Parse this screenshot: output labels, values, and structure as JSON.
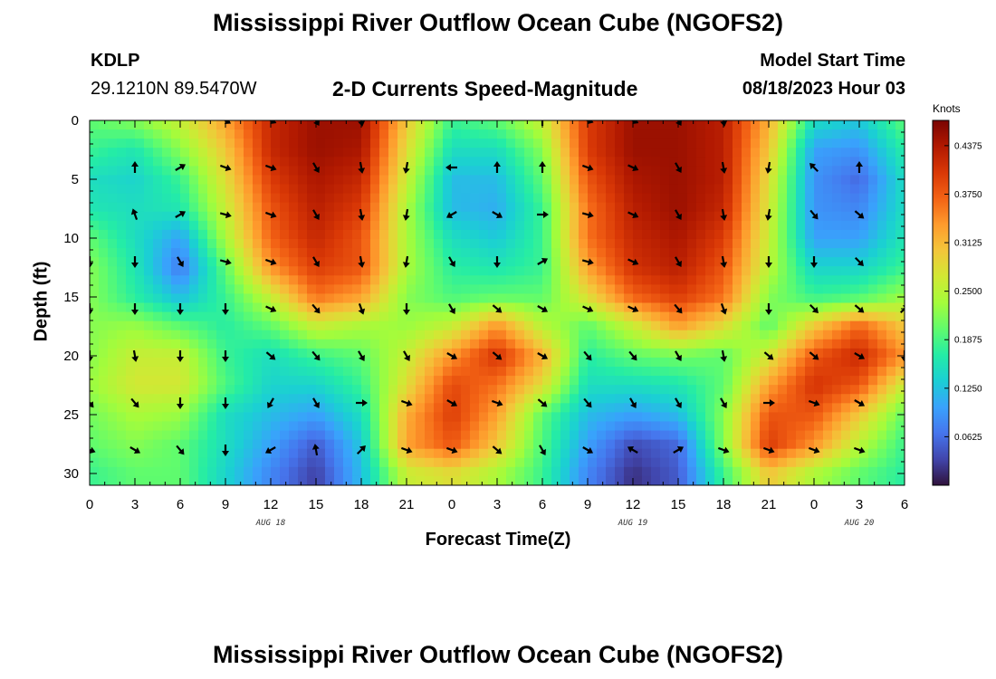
{
  "header": {
    "title": "Mississippi River Outflow Ocean Cube (NGOFS2)",
    "station_id": "KDLP",
    "coordinates": "29.1210N  89.5470W",
    "subtitle": "2-D Currents Speed-Magnitude",
    "model_start_label": "Model Start Time",
    "model_start_value": "08/18/2023 Hour 03"
  },
  "footer": {
    "title": "Mississippi River Outflow Ocean Cube (NGOFS2)"
  },
  "chart_data": {
    "type": "heatmap",
    "x_axis": {
      "label": "Forecast Time(Z)",
      "range_hours": [
        0,
        54
      ],
      "ticks": [
        {
          "hour": 0,
          "label": "0"
        },
        {
          "hour": 3,
          "label": "3"
        },
        {
          "hour": 6,
          "label": "6"
        },
        {
          "hour": 9,
          "label": "9"
        },
        {
          "hour": 12,
          "label": "12"
        },
        {
          "hour": 15,
          "label": "15"
        },
        {
          "hour": 18,
          "label": "18"
        },
        {
          "hour": 21,
          "label": "21"
        },
        {
          "hour": 24,
          "label": "0"
        },
        {
          "hour": 27,
          "label": "3"
        },
        {
          "hour": 30,
          "label": "6"
        },
        {
          "hour": 33,
          "label": "9"
        },
        {
          "hour": 36,
          "label": "12"
        },
        {
          "hour": 39,
          "label": "15"
        },
        {
          "hour": 42,
          "label": "18"
        },
        {
          "hour": 45,
          "label": "21"
        },
        {
          "hour": 48,
          "label": "0"
        },
        {
          "hour": 51,
          "label": "3"
        },
        {
          "hour": 54,
          "label": "6"
        }
      ],
      "date_labels": [
        {
          "hour": 12,
          "label": "AUG 18"
        },
        {
          "hour": 36,
          "label": "AUG 19"
        },
        {
          "hour": 51,
          "label": "AUG 20"
        }
      ]
    },
    "y_axis": {
      "label": "Depth (ft)",
      "range": [
        0,
        31
      ],
      "inverted": true,
      "ticks": [
        0,
        5,
        10,
        15,
        20,
        25,
        30
      ]
    },
    "colorbar": {
      "unit": "Knots",
      "range": [
        0.0,
        0.47
      ],
      "ticks": [
        "0.0625",
        "0.1250",
        "0.1875",
        "0.2500",
        "0.3125",
        "0.3750",
        "0.4375"
      ],
      "tick_values": [
        0.0625,
        0.125,
        0.1875,
        0.25,
        0.3125,
        0.375,
        0.4375
      ],
      "colormap": [
        "#30123b",
        "#4145ab",
        "#4675ed",
        "#39a2fc",
        "#1bcfd4",
        "#24eca6",
        "#61fc6c",
        "#a4fc3b",
        "#d1e834",
        "#f3c63a",
        "#fe9b2d",
        "#f36315",
        "#d93806",
        "#b11901",
        "#7a0402"
      ]
    },
    "speed_field": {
      "description": "current speed magnitude (knots) by forecast hour (columns) and depth (rows)",
      "hours": [
        0,
        3,
        6,
        9,
        12,
        15,
        18,
        21,
        24,
        27,
        30,
        33,
        36,
        39,
        42,
        45,
        48,
        51,
        54
      ],
      "depths": [
        0,
        2.5,
        5,
        7.5,
        10,
        12.5,
        15,
        17.5,
        20,
        22.5,
        25,
        27.5,
        30
      ],
      "values": [
        [
          0.2,
          0.22,
          0.26,
          0.33,
          0.42,
          0.45,
          0.45,
          0.3,
          0.18,
          0.2,
          0.26,
          0.4,
          0.45,
          0.45,
          0.43,
          0.32,
          0.15,
          0.13,
          0.2
        ],
        [
          0.18,
          0.16,
          0.22,
          0.3,
          0.42,
          0.45,
          0.44,
          0.28,
          0.15,
          0.15,
          0.22,
          0.4,
          0.45,
          0.45,
          0.43,
          0.3,
          0.1,
          0.09,
          0.17
        ],
        [
          0.15,
          0.14,
          0.18,
          0.28,
          0.4,
          0.44,
          0.42,
          0.26,
          0.12,
          0.12,
          0.2,
          0.38,
          0.44,
          0.45,
          0.43,
          0.28,
          0.09,
          0.06,
          0.15
        ],
        [
          0.16,
          0.15,
          0.16,
          0.26,
          0.38,
          0.43,
          0.4,
          0.24,
          0.12,
          0.11,
          0.18,
          0.36,
          0.43,
          0.45,
          0.42,
          0.27,
          0.09,
          0.08,
          0.15
        ],
        [
          0.2,
          0.15,
          0.1,
          0.24,
          0.37,
          0.42,
          0.38,
          0.24,
          0.15,
          0.13,
          0.18,
          0.36,
          0.42,
          0.44,
          0.4,
          0.26,
          0.1,
          0.1,
          0.16
        ],
        [
          0.22,
          0.16,
          0.07,
          0.2,
          0.34,
          0.4,
          0.38,
          0.24,
          0.17,
          0.16,
          0.18,
          0.33,
          0.41,
          0.43,
          0.38,
          0.25,
          0.14,
          0.14,
          0.18
        ],
        [
          0.22,
          0.17,
          0.12,
          0.18,
          0.26,
          0.36,
          0.33,
          0.22,
          0.19,
          0.2,
          0.2,
          0.28,
          0.37,
          0.4,
          0.36,
          0.22,
          0.18,
          0.19,
          0.23
        ],
        [
          0.22,
          0.23,
          0.2,
          0.17,
          0.2,
          0.26,
          0.24,
          0.23,
          0.26,
          0.34,
          0.25,
          0.2,
          0.26,
          0.33,
          0.28,
          0.2,
          0.3,
          0.37,
          0.3
        ],
        [
          0.22,
          0.26,
          0.26,
          0.18,
          0.15,
          0.18,
          0.2,
          0.26,
          0.34,
          0.41,
          0.32,
          0.17,
          0.2,
          0.21,
          0.2,
          0.27,
          0.38,
          0.42,
          0.34
        ],
        [
          0.23,
          0.27,
          0.27,
          0.19,
          0.14,
          0.14,
          0.18,
          0.28,
          0.39,
          0.36,
          0.28,
          0.15,
          0.15,
          0.16,
          0.2,
          0.33,
          0.41,
          0.38,
          0.26
        ],
        [
          0.21,
          0.24,
          0.23,
          0.15,
          0.12,
          0.1,
          0.15,
          0.32,
          0.4,
          0.33,
          0.2,
          0.12,
          0.1,
          0.12,
          0.22,
          0.38,
          0.38,
          0.3,
          0.2
        ],
        [
          0.2,
          0.22,
          0.2,
          0.15,
          0.1,
          0.05,
          0.13,
          0.33,
          0.38,
          0.3,
          0.19,
          0.1,
          0.04,
          0.06,
          0.22,
          0.4,
          0.34,
          0.25,
          0.18
        ],
        [
          0.18,
          0.2,
          0.2,
          0.14,
          0.08,
          0.03,
          0.12,
          0.26,
          0.28,
          0.24,
          0.18,
          0.08,
          0.02,
          0.05,
          0.18,
          0.3,
          0.24,
          0.2,
          0.17
        ]
      ]
    },
    "direction_arrows": {
      "description": "current direction in degrees (screen angle: 0 = pointing right, 90 = pointing down)",
      "hours": [
        0,
        3,
        6,
        9,
        12,
        15,
        18,
        21,
        24,
        27,
        30,
        33,
        36,
        39,
        42,
        45,
        48,
        51,
        54
      ],
      "depths": [
        0,
        4,
        8,
        12,
        16,
        20,
        24,
        28
      ],
      "angles": [
        [
          null,
          null,
          null,
          30,
          25,
          60,
          80,
          null,
          null,
          null,
          270,
          20,
          25,
          60,
          80,
          null,
          null,
          null,
          null
        ],
        [
          null,
          -90,
          -30,
          20,
          20,
          60,
          80,
          100,
          180,
          -90,
          -90,
          20,
          25,
          60,
          80,
          100,
          -135,
          -90,
          null
        ],
        [
          null,
          -110,
          -30,
          15,
          20,
          60,
          80,
          100,
          150,
          30,
          0,
          15,
          25,
          60,
          80,
          100,
          50,
          40,
          null
        ],
        [
          90,
          90,
          60,
          15,
          20,
          60,
          80,
          100,
          60,
          90,
          -30,
          15,
          25,
          60,
          80,
          90,
          90,
          45,
          null
        ],
        [
          90,
          90,
          90,
          90,
          25,
          50,
          70,
          90,
          60,
          40,
          30,
          25,
          25,
          50,
          70,
          90,
          45,
          40,
          -45
        ],
        [
          90,
          80,
          90,
          90,
          40,
          50,
          60,
          60,
          30,
          40,
          30,
          50,
          50,
          60,
          80,
          40,
          40,
          30,
          90
        ],
        [
          50,
          50,
          90,
          90,
          120,
          60,
          0,
          20,
          30,
          20,
          40,
          50,
          60,
          60,
          60,
          0,
          20,
          30,
          null
        ],
        [
          20,
          30,
          50,
          90,
          150,
          -100,
          -45,
          20,
          20,
          40,
          60,
          30,
          -150,
          -30,
          20,
          20,
          20,
          20,
          null
        ]
      ]
    }
  }
}
